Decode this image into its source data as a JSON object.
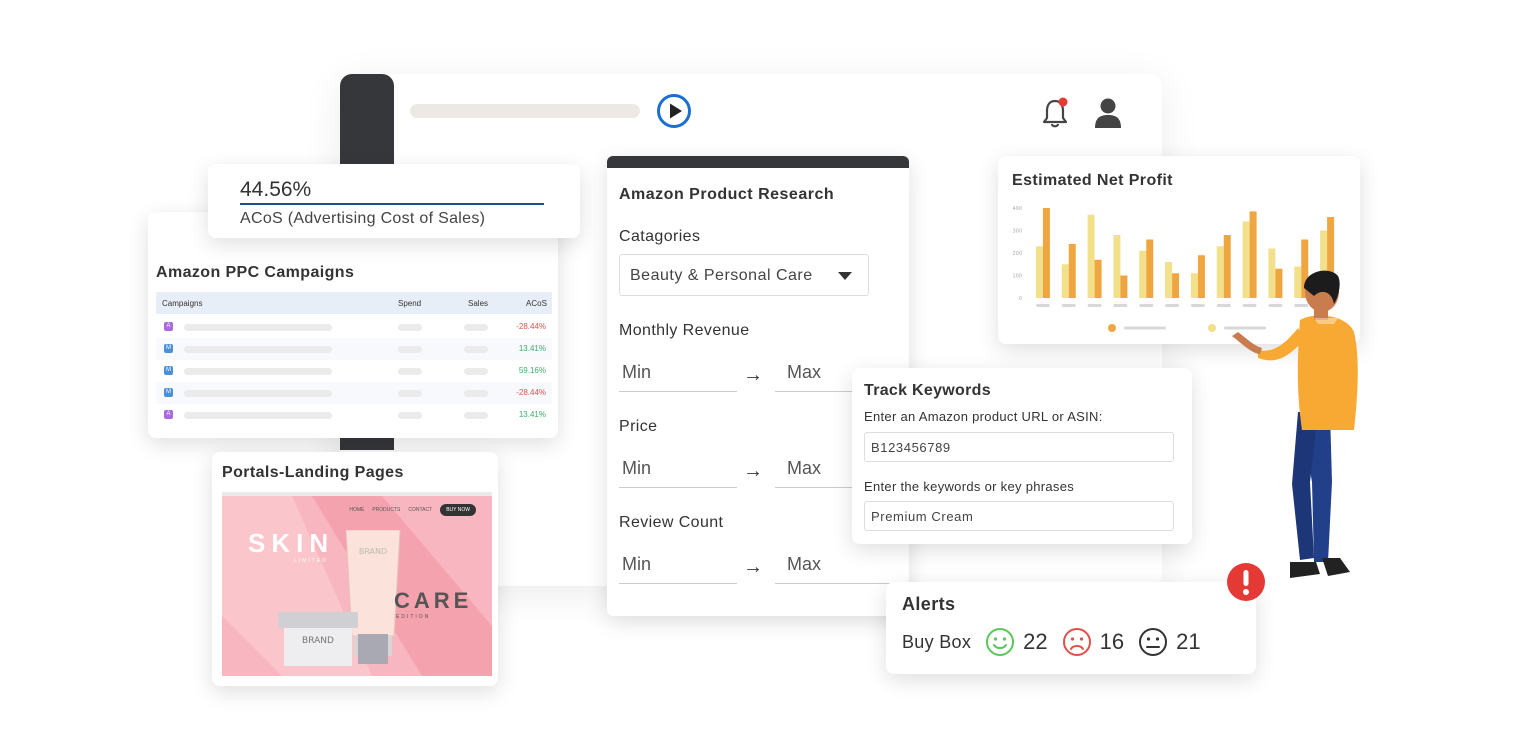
{
  "acos": {
    "value": "44.56%",
    "label": "ACoS (Advertising Cost of Sales)"
  },
  "ppc": {
    "title": "Amazon PPC Campaigns",
    "columns": [
      "Campaigns",
      "Spend",
      "Sales",
      "ACoS"
    ],
    "rows": [
      {
        "badge": "A",
        "badge_color": "#a96be0",
        "acos": "-28.44%",
        "trend": "neg"
      },
      {
        "badge": "M",
        "badge_color": "#4a90d9",
        "acos": "13.41%",
        "trend": "pos"
      },
      {
        "badge": "M",
        "badge_color": "#4a90d9",
        "acos": "59.16%",
        "trend": "pos"
      },
      {
        "badge": "M",
        "badge_color": "#4a90d9",
        "acos": "-28.44%",
        "trend": "neg"
      },
      {
        "badge": "A",
        "badge_color": "#a96be0",
        "acos": "13.41%",
        "trend": "pos"
      }
    ]
  },
  "portals": {
    "title": "Portals-Landing Pages",
    "preview": {
      "nav": [
        "HOME",
        "PRODUCTS",
        "CONTACT"
      ],
      "buy_now": "BUY NOW",
      "skin": "SKIN",
      "limited": "LIMITED",
      "care": "CARE",
      "edition": "EDITION",
      "brand": "BRAND"
    }
  },
  "research": {
    "title": "Amazon Product Research",
    "categories_label": "Catagories",
    "category_value": "Beauty & Personal Care",
    "monthly_revenue_label": "Monthly Revenue",
    "price_label": "Price",
    "review_count_label": "Review Count",
    "min": "Min",
    "max": "Max",
    "arrow": "→"
  },
  "profit": {
    "title": "Estimated Net Profit"
  },
  "chart_data": {
    "type": "bar",
    "title": "Estimated Net Profit",
    "yticks": [
      "400",
      "300",
      "200",
      "100",
      "0"
    ],
    "ylim": [
      0,
      400
    ],
    "categories": [
      "1",
      "2",
      "3",
      "4",
      "5",
      "6",
      "7",
      "8",
      "9",
      "10",
      "11",
      "12"
    ],
    "series": [
      {
        "color": "#f2e08a",
        "values": [
          230,
          150,
          370,
          280,
          210,
          160,
          110,
          230,
          340,
          220,
          140,
          300
        ]
      },
      {
        "color": "#f0a640",
        "values": [
          400,
          240,
          170,
          100,
          260,
          110,
          190,
          280,
          385,
          130,
          260,
          360
        ]
      }
    ],
    "legend_colors": [
      "#f0a640",
      "#f2e08a"
    ]
  },
  "track": {
    "title": "Track Keywords",
    "url_label": "Enter an Amazon product URL or ASIN:",
    "url_value": "B123456789",
    "keywords_label": "Enter the keywords or key phrases",
    "keywords_value": "Premium Cream"
  },
  "alerts": {
    "title": "Alerts",
    "buybox_label": "Buy Box",
    "happy_count": "22",
    "sad_count": "16",
    "neutral_count": "21",
    "happy_color": "#5bc75b",
    "sad_color": "#e2504a",
    "neutral_color": "#333333"
  }
}
